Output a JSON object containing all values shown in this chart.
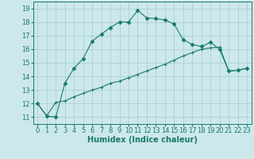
{
  "line1_x": [
    0,
    1,
    2,
    3,
    4,
    5,
    6,
    7,
    8,
    9,
    10,
    11,
    12,
    13,
    14,
    15,
    16,
    17,
    18,
    19,
    20,
    21,
    22,
    23
  ],
  "line1_y": [
    12.0,
    11.1,
    11.0,
    13.5,
    14.6,
    15.3,
    16.6,
    17.1,
    17.6,
    18.0,
    18.0,
    18.85,
    18.3,
    18.25,
    18.15,
    17.85,
    16.7,
    16.35,
    16.2,
    16.5,
    16.0,
    14.4,
    14.45,
    14.6
  ],
  "line2_x": [
    0,
    1,
    2,
    3,
    4,
    5,
    6,
    7,
    8,
    9,
    10,
    11,
    12,
    13,
    14,
    15,
    16,
    17,
    18,
    19,
    20,
    21,
    22,
    23
  ],
  "line2_y": [
    12.0,
    11.1,
    12.1,
    12.2,
    12.5,
    12.75,
    13.0,
    13.2,
    13.5,
    13.65,
    13.9,
    14.15,
    14.4,
    14.65,
    14.9,
    15.2,
    15.5,
    15.75,
    16.0,
    16.1,
    16.15,
    14.4,
    14.45,
    14.6
  ],
  "color": "#1a7a6a",
  "bg_color": "#cce8eb",
  "grid_color": "#aacfd4",
  "xlabel": "Humidex (Indice chaleur)",
  "ylim": [
    10.5,
    19.5
  ],
  "xlim": [
    -0.5,
    23.5
  ],
  "yticks": [
    11,
    12,
    13,
    14,
    15,
    16,
    17,
    18,
    19
  ],
  "xticks": [
    0,
    1,
    2,
    3,
    4,
    5,
    6,
    7,
    8,
    9,
    10,
    11,
    12,
    13,
    14,
    15,
    16,
    17,
    18,
    19,
    20,
    21,
    22,
    23
  ],
  "marker1": "D",
  "marker2": "+",
  "markersize1": 2.5,
  "markersize2": 3.0,
  "linewidth": 0.8,
  "xlabel_fontsize": 7,
  "tick_fontsize": 6
}
